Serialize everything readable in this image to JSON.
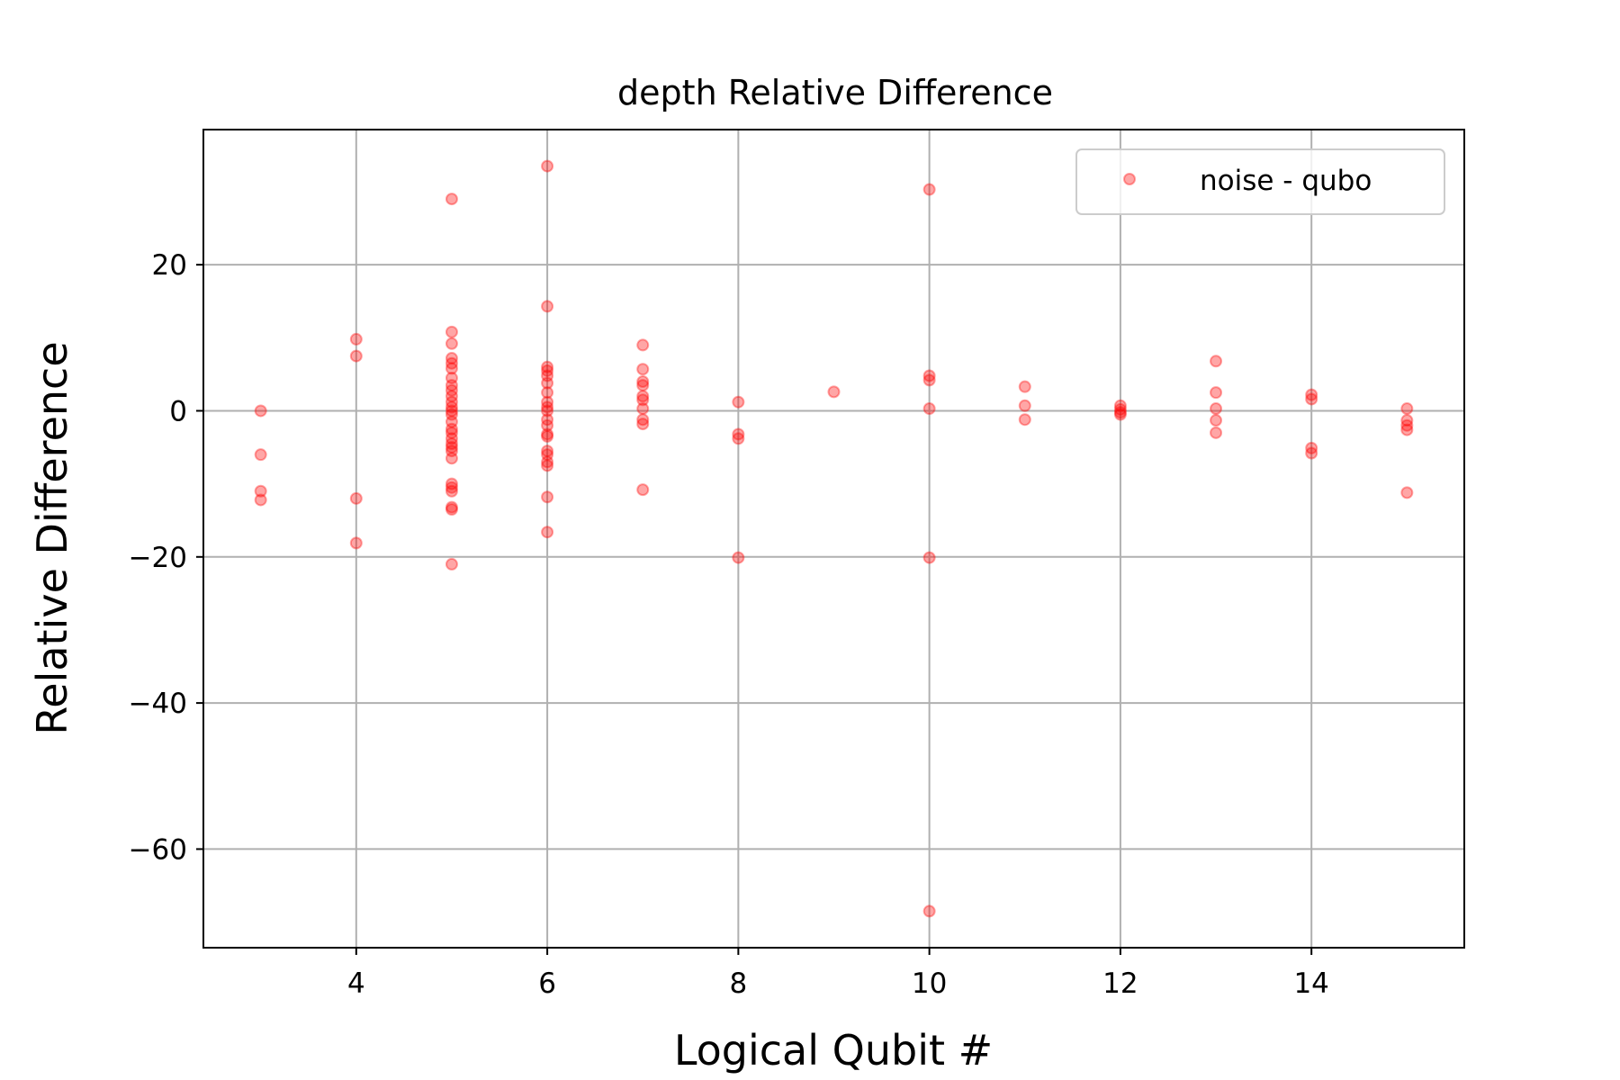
{
  "chart_data": {
    "type": "scatter",
    "title": "depth Relative Difference",
    "xlabel": "Logical Qubit #",
    "ylabel": "Relative Difference",
    "xlim": [
      2.4,
      15.6
    ],
    "ylim": [
      -73.5,
      38.5
    ],
    "xticks": [
      4,
      6,
      8,
      10,
      12,
      14
    ],
    "xtick_labels": [
      "4",
      "6",
      "8",
      "10",
      "12",
      "14"
    ],
    "yticks": [
      20,
      0,
      -20,
      -40,
      -60
    ],
    "ytick_labels": [
      "20",
      "0",
      "−20",
      "−40",
      "−60"
    ],
    "grid": true,
    "legend": {
      "position": "top-right"
    },
    "series": [
      {
        "name": "noise - qubo",
        "color": "#ff0000",
        "alpha": 0.35,
        "marker": "circle",
        "points": [
          [
            3,
            0
          ],
          [
            3,
            -6
          ],
          [
            3,
            -11
          ],
          [
            3,
            -12.2
          ],
          [
            4,
            9.8
          ],
          [
            4,
            7.5
          ],
          [
            4,
            -12
          ],
          [
            4,
            -18.1
          ],
          [
            5,
            29
          ],
          [
            5,
            10.8
          ],
          [
            5,
            9.2
          ],
          [
            5,
            7.2
          ],
          [
            5,
            6.5
          ],
          [
            5,
            5.8
          ],
          [
            5,
            4.5
          ],
          [
            5,
            3.5
          ],
          [
            5,
            2.8
          ],
          [
            5,
            2
          ],
          [
            5,
            1.2
          ],
          [
            5,
            0.5
          ],
          [
            5,
            0
          ],
          [
            5,
            -0.5
          ],
          [
            5,
            -1.5
          ],
          [
            5,
            -2.5
          ],
          [
            5,
            -3
          ],
          [
            5,
            -3.8
          ],
          [
            5,
            -4.5
          ],
          [
            5,
            -5
          ],
          [
            5,
            -5.5
          ],
          [
            5,
            -6.5
          ],
          [
            5,
            -10
          ],
          [
            5,
            -10.5
          ],
          [
            5,
            -11
          ],
          [
            5,
            -13.2
          ],
          [
            5,
            -13.5
          ],
          [
            5,
            -21
          ],
          [
            6,
            33.5
          ],
          [
            6,
            14.3
          ],
          [
            6,
            6
          ],
          [
            6,
            5.5
          ],
          [
            6,
            4.8
          ],
          [
            6,
            3.8
          ],
          [
            6,
            2.5
          ],
          [
            6,
            1.2
          ],
          [
            6,
            0.5
          ],
          [
            6,
            0
          ],
          [
            6,
            -1.2
          ],
          [
            6,
            -2
          ],
          [
            6,
            -3.2
          ],
          [
            6,
            -3.5
          ],
          [
            6,
            -5.5
          ],
          [
            6,
            -6
          ],
          [
            6,
            -7
          ],
          [
            6,
            -7.5
          ],
          [
            6,
            -11.8
          ],
          [
            6,
            -16.6
          ],
          [
            7,
            9
          ],
          [
            7,
            5.7
          ],
          [
            7,
            4
          ],
          [
            7,
            3.5
          ],
          [
            7,
            2
          ],
          [
            7,
            1.5
          ],
          [
            7,
            0.3
          ],
          [
            7,
            -1.2
          ],
          [
            7,
            -1.8
          ],
          [
            7,
            -10.8
          ],
          [
            8,
            1.2
          ],
          [
            8,
            -3.2
          ],
          [
            8,
            -3.8
          ],
          [
            8,
            -20.1
          ],
          [
            9,
            2.6
          ],
          [
            10,
            30.3
          ],
          [
            10,
            4.8
          ],
          [
            10,
            4.2
          ],
          [
            10,
            0.3
          ],
          [
            10,
            -20.1
          ],
          [
            10,
            -68.5
          ],
          [
            11,
            3.3
          ],
          [
            11,
            0.7
          ],
          [
            11,
            -1.2
          ],
          [
            12,
            0.7
          ],
          [
            12,
            0.2
          ],
          [
            12,
            -0.2
          ],
          [
            12,
            -0.5
          ],
          [
            13,
            6.8
          ],
          [
            13,
            2.5
          ],
          [
            13,
            0.3
          ],
          [
            13,
            -1.3
          ],
          [
            13,
            -3
          ],
          [
            14,
            2.2
          ],
          [
            14,
            1.6
          ],
          [
            14,
            -5.1
          ],
          [
            14,
            -5.8
          ],
          [
            15,
            0.3
          ],
          [
            15,
            -1.3
          ],
          [
            15,
            -2
          ],
          [
            15,
            -2.6
          ],
          [
            15,
            -11.2
          ]
        ]
      }
    ]
  }
}
